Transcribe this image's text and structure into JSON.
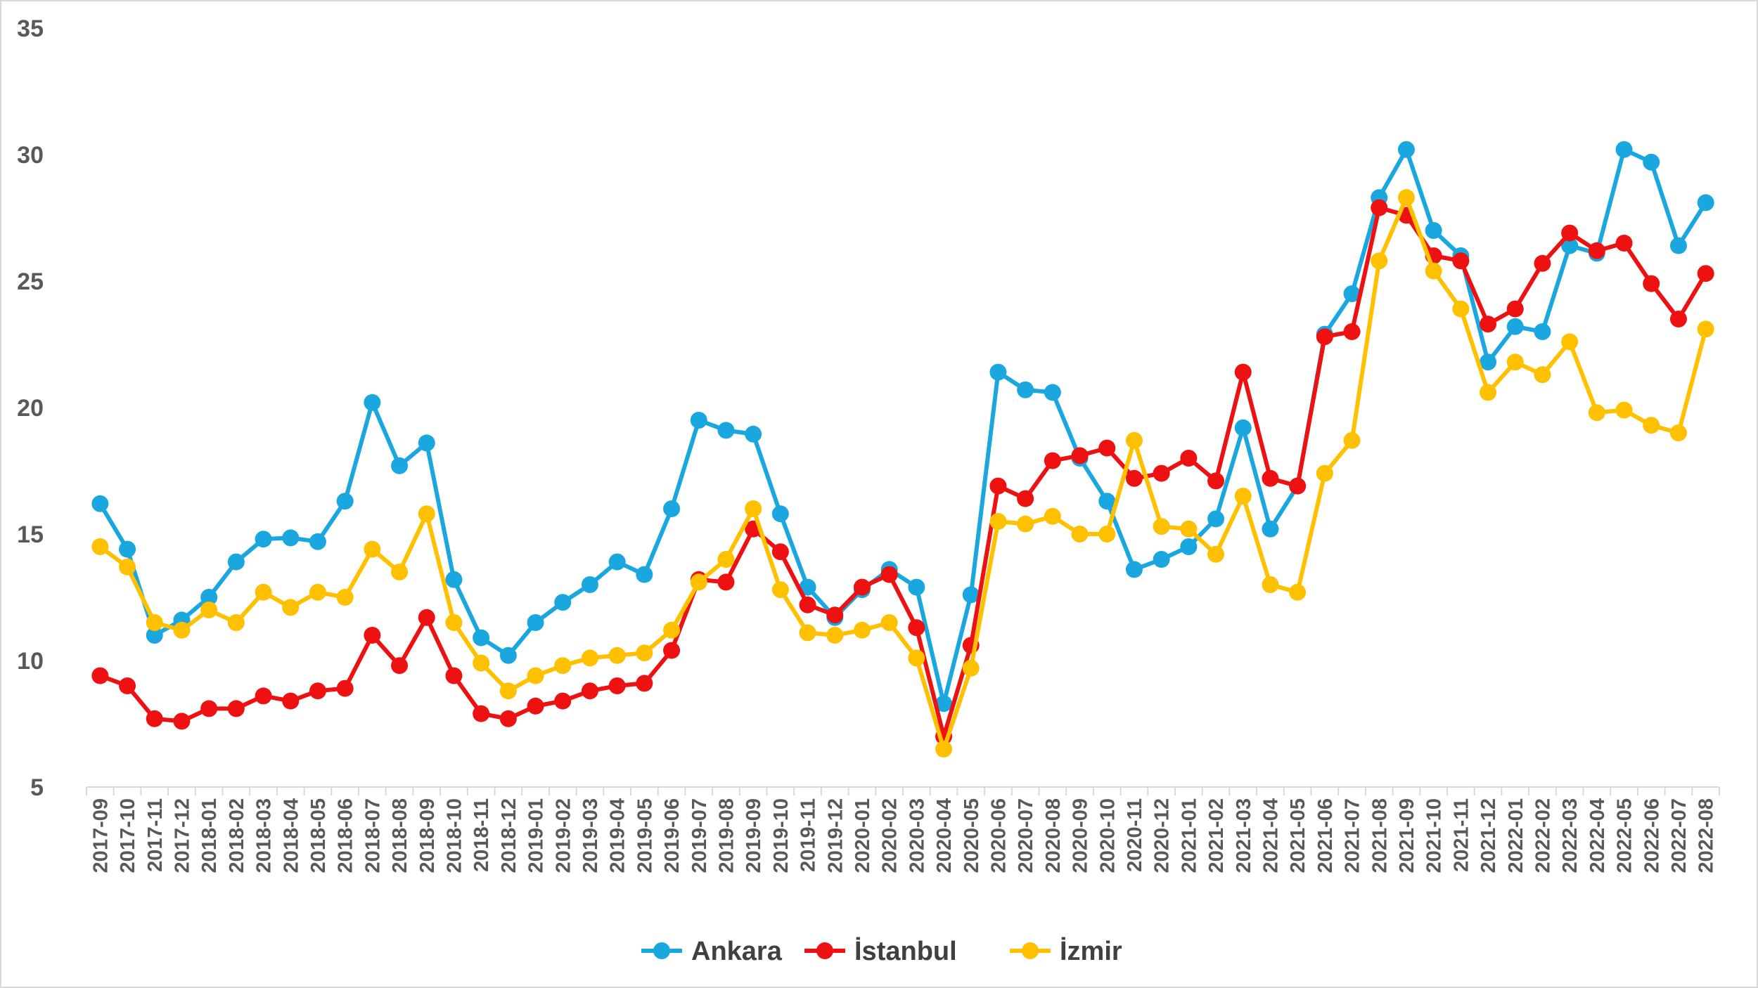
{
  "chart_data": {
    "type": "line",
    "title": "",
    "xlabel": "",
    "ylabel": "",
    "ylim": [
      5,
      35
    ],
    "yticks": [
      5,
      10,
      15,
      20,
      25,
      30,
      35
    ],
    "grid": false,
    "legend_position": "bottom",
    "categories": [
      "2017-09",
      "2017-10",
      "2017-11",
      "2017-12",
      "2018-01",
      "2018-02",
      "2018-03",
      "2018-04",
      "2018-05",
      "2018-06",
      "2018-07",
      "2018-08",
      "2018-09",
      "2018-10",
      "2018-11",
      "2018-12",
      "2019-01",
      "2019-02",
      "2019-03",
      "2019-04",
      "2019-05",
      "2019-06",
      "2019-07",
      "2019-08",
      "2019-09",
      "2019-10",
      "2019-11",
      "2019-12",
      "2020-01",
      "2020-02",
      "2020-03",
      "2020-04",
      "2020-05",
      "2020-06",
      "2020-07",
      "2020-08",
      "2020-09",
      "2020-10",
      "2020-11",
      "2020-12",
      "2021-01",
      "2021-02",
      "2021-03",
      "2021-04",
      "2021-05",
      "2021-06",
      "2021-07",
      "2021-08",
      "2021-09",
      "2021-10",
      "2021-11",
      "2021-12",
      "2022-01",
      "2022-02",
      "2022-03",
      "2022-04",
      "2022-05",
      "2022-06",
      "2022-07",
      "2022-08"
    ],
    "series": [
      {
        "name": "Ankara",
        "color": "#1AA7E0",
        "values": [
          16.2,
          14.4,
          11.0,
          11.6,
          12.5,
          13.9,
          14.8,
          14.85,
          14.7,
          16.3,
          20.2,
          17.7,
          18.6,
          13.2,
          10.9,
          10.2,
          11.5,
          12.3,
          13.0,
          13.9,
          13.4,
          16.0,
          19.5,
          19.1,
          18.95,
          15.8,
          12.9,
          11.7,
          12.8,
          13.6,
          12.9,
          8.3,
          12.6,
          21.4,
          20.7,
          20.6,
          18.0,
          16.3,
          13.6,
          14.0,
          14.5,
          15.6,
          19.2,
          15.2,
          16.9,
          22.9,
          24.5,
          28.3,
          30.2,
          27.0,
          26.0,
          21.8,
          23.2,
          23.0,
          26.4,
          26.1,
          30.2,
          29.7,
          26.4,
          28.1
        ]
      },
      {
        "name": "İstanbul",
        "color": "#EE1111",
        "values": [
          9.4,
          9.0,
          7.7,
          7.6,
          8.1,
          8.1,
          8.6,
          8.4,
          8.8,
          8.9,
          11.0,
          9.8,
          11.7,
          9.4,
          7.9,
          7.7,
          8.2,
          8.4,
          8.8,
          9.0,
          9.1,
          10.4,
          13.2,
          13.1,
          15.2,
          14.3,
          12.2,
          11.8,
          12.9,
          13.4,
          11.3,
          7.0,
          10.6,
          16.9,
          16.4,
          17.9,
          18.1,
          18.4,
          17.2,
          17.4,
          18.0,
          17.1,
          21.4,
          17.2,
          16.9,
          22.8,
          23.0,
          27.9,
          27.6,
          26.0,
          25.8,
          23.3,
          23.9,
          25.7,
          26.9,
          26.2,
          26.5,
          24.9,
          23.5,
          25.3
        ]
      },
      {
        "name": "İzmir",
        "color": "#FFC000",
        "values": [
          14.5,
          13.7,
          11.5,
          11.2,
          12.0,
          11.5,
          12.7,
          12.1,
          12.7,
          12.5,
          14.4,
          13.5,
          15.8,
          11.5,
          9.9,
          8.8,
          9.4,
          9.8,
          10.1,
          10.2,
          10.3,
          11.2,
          13.1,
          14.0,
          16.0,
          12.8,
          11.1,
          11.0,
          11.2,
          11.5,
          10.1,
          6.5,
          9.7,
          15.5,
          15.4,
          15.7,
          15.0,
          15.0,
          18.7,
          15.3,
          15.2,
          14.2,
          16.5,
          13.0,
          12.7,
          17.4,
          18.7,
          25.8,
          28.3,
          25.4,
          23.9,
          20.6,
          21.8,
          21.3,
          22.6,
          19.8,
          19.9,
          19.3,
          19.0,
          23.1
        ]
      }
    ]
  }
}
